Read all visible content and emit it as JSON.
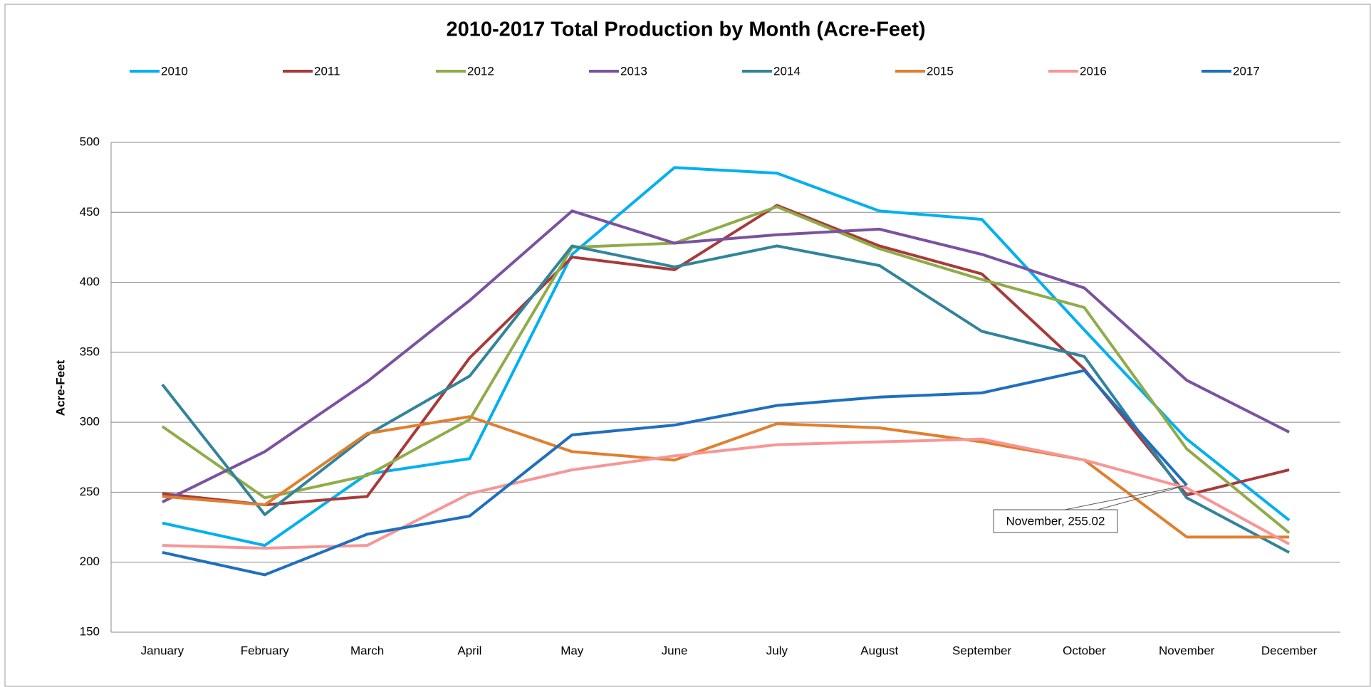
{
  "chart_data": {
    "type": "line",
    "title": "2010-2017 Total Production by Month (Acre-Feet)",
    "y_label": "Acre-Feet",
    "categories": [
      "January",
      "February",
      "March",
      "April",
      "May",
      "June",
      "July",
      "August",
      "September",
      "October",
      "November",
      "December"
    ],
    "series": [
      {
        "name": "2010",
        "color": "#00b0f0",
        "values": [
          228,
          212,
          263,
          274,
          420,
          482,
          478,
          451,
          445,
          366,
          288,
          230
        ]
      },
      {
        "name": "2011",
        "color": "#a83a3a",
        "values": [
          249,
          241,
          247,
          346,
          418,
          409,
          455,
          426,
          406,
          338,
          248,
          266
        ]
      },
      {
        "name": "2012",
        "color": "#8fac48",
        "values": [
          297,
          246,
          262,
          302,
          425,
          428,
          454,
          424,
          402,
          382,
          281,
          221
        ]
      },
      {
        "name": "2013",
        "color": "#7a52a0",
        "values": [
          243,
          279,
          329,
          387,
          451,
          428,
          434,
          438,
          420,
          396,
          330,
          293
        ]
      },
      {
        "name": "2014",
        "color": "#31849b",
        "values": [
          327,
          234,
          291,
          333,
          426,
          411,
          426,
          412,
          365,
          347,
          246,
          207
        ]
      },
      {
        "name": "2015",
        "color": "#e07f2e",
        "values": [
          247,
          241,
          292,
          304,
          279,
          273,
          299,
          296,
          286,
          273,
          218,
          218
        ]
      },
      {
        "name": "2016",
        "color": "#f79696",
        "values": [
          212,
          210,
          212,
          249,
          266,
          276,
          284,
          286,
          288,
          273,
          253,
          213
        ]
      },
      {
        "name": "2017",
        "color": "#1f6fbf",
        "values": [
          207,
          191,
          220,
          233,
          291,
          298,
          312,
          318,
          321,
          337,
          255.02,
          null
        ]
      }
    ],
    "annotations": [
      {
        "text": "November, 255.02"
      }
    ],
    "ylim": [
      150,
      500
    ],
    "yticks": [
      150,
      200,
      250,
      300,
      350,
      400,
      450,
      500
    ],
    "grid": true
  }
}
